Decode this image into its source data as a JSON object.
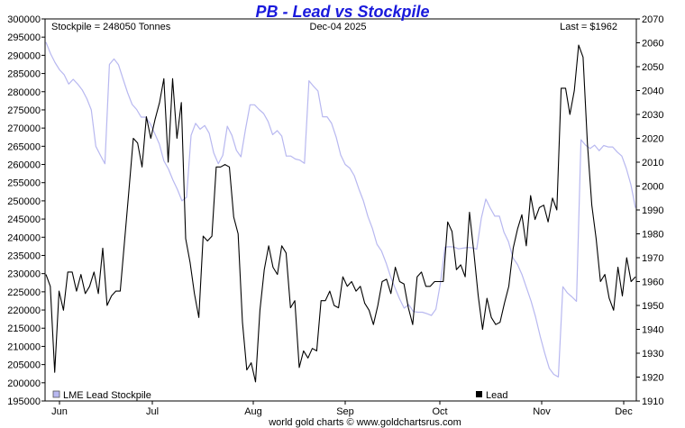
{
  "chart_data": {
    "type": "line",
    "title": "PB - Lead vs Stockpile",
    "annotations": {
      "stockpile": "Stockpile = 248050 Tonnes",
      "date": "Dec-04  2025",
      "last": "Last = $1962"
    },
    "footer": "world gold charts © www.goldchartsrus.com",
    "x_labels": [
      "Jun",
      "Jul",
      "Aug",
      "Sep",
      "Oct",
      "Nov",
      "Dec"
    ],
    "y_left": {
      "min": 195000,
      "max": 300000,
      "ticks": [
        195000,
        200000,
        205000,
        210000,
        215000,
        220000,
        225000,
        230000,
        235000,
        240000,
        245000,
        250000,
        255000,
        260000,
        265000,
        270000,
        275000,
        280000,
        285000,
        290000,
        295000,
        300000
      ]
    },
    "y_right": {
      "min": 1910,
      "max": 2070,
      "ticks": [
        1910,
        1920,
        1930,
        1940,
        1950,
        1960,
        1970,
        1980,
        1990,
        2000,
        2010,
        2020,
        2030,
        2040,
        2050,
        2060,
        2070
      ]
    },
    "grid": false,
    "legend": [
      {
        "label": "LME Lead Stockpile",
        "color": "#b8b8f0",
        "position": "bottom-left"
      },
      {
        "label": "Lead",
        "color": "#000000",
        "position": "bottom-right"
      }
    ],
    "series": [
      {
        "name": "LME Lead Stockpile",
        "axis": "left",
        "color": "#b8b8f0",
        "values": [
          293600,
          290500,
          288000,
          286000,
          284700,
          282100,
          283400,
          282100,
          280500,
          278100,
          275000,
          265000,
          262500,
          260200,
          287500,
          289000,
          287400,
          283500,
          279700,
          276500,
          275100,
          273000,
          273000,
          271200,
          268500,
          265600,
          261000,
          258800,
          255700,
          253100,
          250000,
          251000,
          268000,
          271300,
          269700,
          270700,
          268600,
          263200,
          260200,
          262500,
          270500,
          268000,
          263900,
          262100,
          269700,
          276400,
          276400,
          275100,
          274000,
          271800,
          268200,
          269300,
          267800,
          262300,
          262300,
          261500,
          261200,
          260300,
          283000,
          281500,
          280200,
          273100,
          273100,
          271300,
          267500,
          262600,
          260000,
          259000,
          256900,
          253300,
          250000,
          245700,
          242400,
          238100,
          236200,
          233000,
          229200,
          226000,
          223000,
          220500,
          221500,
          219600,
          219400,
          219400,
          219000,
          218500,
          220200,
          227500,
          237300,
          237400,
          237300,
          236800,
          237000,
          237200,
          237100,
          236700,
          245200,
          250500,
          248000,
          245800,
          245800,
          241400,
          238800,
          234300,
          232500,
          229700,
          226000,
          222400,
          218000,
          212700,
          208100,
          204000,
          202300,
          201600,
          226400,
          224700,
          223600,
          222400,
          266800,
          265300,
          264400,
          265300,
          263800,
          265200,
          264800,
          264800,
          263400,
          262300,
          258900,
          254400,
          248100
        ]
      },
      {
        "name": "Lead",
        "axis": "right",
        "color": "#000000",
        "values": [
          1963,
          1958,
          1922,
          1956,
          1948,
          1964,
          1964,
          1956,
          1963,
          1955,
          1958,
          1964,
          1955,
          1974,
          1950,
          1954,
          1956,
          1956,
          1977,
          1998,
          2020,
          2018,
          2008,
          2029,
          2020,
          2028,
          2035,
          2045,
          2010,
          2045,
          2020,
          2035,
          1978,
          1968,
          1955,
          1945,
          1979,
          1977,
          1979,
          2008,
          2008,
          2009,
          2008,
          1987,
          1980,
          1943,
          1923,
          1926,
          1918,
          1948,
          1965,
          1975,
          1966,
          1963,
          1975,
          1972,
          1949,
          1952,
          1924,
          1931,
          1928,
          1932,
          1931,
          1952,
          1952,
          1956,
          1950,
          1949,
          1962,
          1958,
          1960,
          1956,
          1958,
          1951,
          1948,
          1942,
          1950,
          1960,
          1961,
          1955,
          1966,
          1960,
          1959,
          1949,
          1942,
          1962,
          1964,
          1958,
          1958,
          1960,
          1960,
          1960,
          1985,
          1981,
          1965,
          1967,
          1962,
          1989,
          1972,
          1954,
          1940,
          1953,
          1945,
          1942,
          1943,
          1951,
          1958,
          1974,
          1982,
          1988,
          1975,
          1996,
          1986,
          1991,
          1992,
          1985,
          1995,
          1990,
          2041,
          2041,
          2030,
          2040,
          2059,
          2054,
          2018,
          1992,
          1978,
          1960,
          1963,
          1953,
          1948,
          1966,
          1954,
          1970,
          1960,
          1962
        ]
      }
    ]
  }
}
